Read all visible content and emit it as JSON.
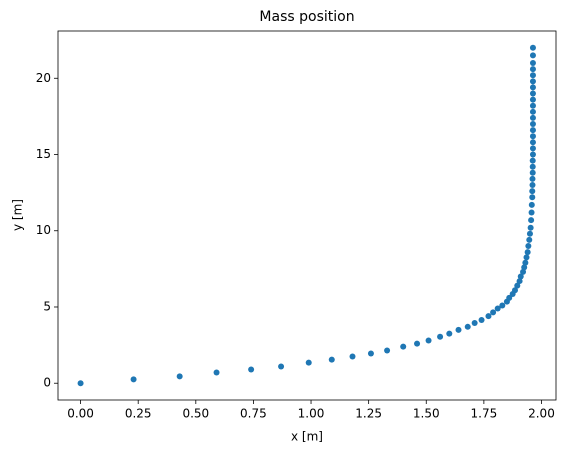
{
  "chart_data": {
    "type": "scatter",
    "title": "Mass position",
    "x_label": "x [m]",
    "y_label": "y [m]",
    "color": "#1f77b4",
    "x": [
      0,
      0.23,
      0.43,
      0.59,
      0.74,
      0.87,
      0.99,
      1.09,
      1.18,
      1.26,
      1.33,
      1.4,
      1.46,
      1.51,
      1.56,
      1.6,
      1.64,
      1.68,
      1.71,
      1.74,
      1.77,
      1.79,
      1.81,
      1.83,
      1.85,
      1.86,
      1.875,
      1.885,
      1.895,
      1.905,
      1.91,
      1.92,
      1.925,
      1.93,
      1.935,
      1.94,
      1.943,
      1.947,
      1.95,
      1.953,
      1.955,
      1.957,
      1.958,
      1.96,
      1.96,
      1.961,
      1.961,
      1.962,
      1.962,
      1.962,
      1.963,
      1.963,
      1.963,
      1.963,
      1.963,
      1.963,
      1.963,
      1.963,
      1.963,
      1.963,
      1.963,
      1.963,
      1.963,
      1.963,
      1.963,
      1.963,
      1.963,
      1.963
    ],
    "values": [
      0,
      0.25,
      0.45,
      0.7,
      0.9,
      1.1,
      1.35,
      1.55,
      1.75,
      1.95,
      2.15,
      2.4,
      2.6,
      2.8,
      3.05,
      3.25,
      3.5,
      3.7,
      3.95,
      4.15,
      4.4,
      4.65,
      4.9,
      5.1,
      5.35,
      5.6,
      5.85,
      6.1,
      6.4,
      6.7,
      7.0,
      7.3,
      7.6,
      7.9,
      8.25,
      8.6,
      9.0,
      9.4,
      9.8,
      10.2,
      10.7,
      11.2,
      11.7,
      12.2,
      12.6,
      13.0,
      13.4,
      13.8,
      14.2,
      14.6,
      15.0,
      15.4,
      15.8,
      16.2,
      16.6,
      17.0,
      17.4,
      17.8,
      18.2,
      18.6,
      19.0,
      19.4,
      19.8,
      20.2,
      20.6,
      21.0,
      21.5,
      22.0
    ],
    "xlim": [
      -0.098,
      2.063
    ],
    "ylim": [
      -1.1,
      23.1
    ],
    "xticks": [
      {
        "value": 0,
        "label": "0.00"
      },
      {
        "value": 0.25,
        "label": "0.25"
      },
      {
        "value": 0.5,
        "label": "0.50"
      },
      {
        "value": 0.75,
        "label": "0.75"
      },
      {
        "value": 1,
        "label": "1.00"
      },
      {
        "value": 1.25,
        "label": "1.25"
      },
      {
        "value": 1.5,
        "label": "1.50"
      },
      {
        "value": 1.75,
        "label": "1.75"
      },
      {
        "value": 2,
        "label": "2.00"
      }
    ],
    "yticks": [
      0,
      5,
      10,
      15,
      20
    ]
  }
}
